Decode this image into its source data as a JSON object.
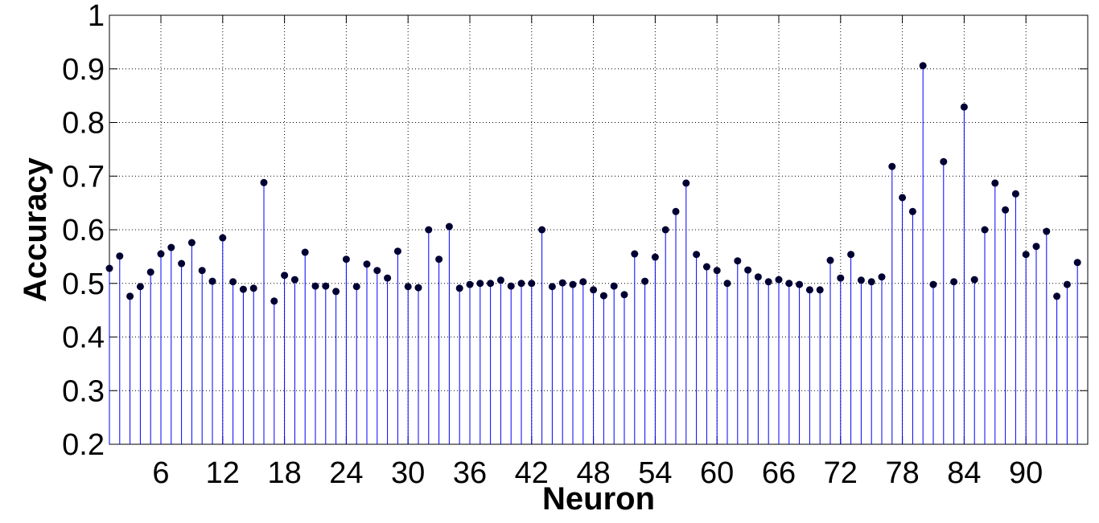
{
  "chart_data": {
    "type": "stem",
    "xlabel": "Neuron",
    "ylabel": "Accuracy",
    "x": [
      1,
      2,
      3,
      4,
      5,
      6,
      7,
      8,
      9,
      10,
      11,
      12,
      13,
      14,
      15,
      16,
      17,
      18,
      19,
      20,
      21,
      22,
      23,
      24,
      25,
      26,
      27,
      28,
      29,
      30,
      31,
      32,
      33,
      34,
      35,
      36,
      37,
      38,
      39,
      40,
      41,
      42,
      43,
      44,
      45,
      46,
      47,
      48,
      49,
      50,
      51,
      52,
      53,
      54,
      55,
      56,
      57,
      58,
      59,
      60,
      61,
      62,
      63,
      64,
      65,
      66,
      67,
      68,
      69,
      70,
      71,
      72,
      73,
      74,
      75,
      76,
      77,
      78,
      79,
      80,
      81,
      82,
      83,
      84,
      85,
      86,
      87,
      88,
      89,
      90,
      91,
      92,
      93,
      94,
      95
    ],
    "values": [
      0.528,
      0.551,
      0.476,
      0.494,
      0.521,
      0.555,
      0.567,
      0.537,
      0.576,
      0.524,
      0.504,
      0.585,
      0.503,
      0.489,
      0.491,
      0.688,
      0.467,
      0.515,
      0.507,
      0.558,
      0.495,
      0.495,
      0.485,
      0.545,
      0.494,
      0.536,
      0.524,
      0.51,
      0.56,
      0.494,
      0.492,
      0.6,
      0.545,
      0.606,
      0.491,
      0.498,
      0.5,
      0.5,
      0.506,
      0.495,
      0.5,
      0.5,
      0.6,
      0.494,
      0.501,
      0.498,
      0.503,
      0.488,
      0.477,
      0.495,
      0.479,
      0.555,
      0.504,
      0.549,
      0.6,
      0.634,
      0.687,
      0.554,
      0.531,
      0.524,
      0.5,
      0.542,
      0.525,
      0.512,
      0.503,
      0.507,
      0.5,
      0.498,
      0.488,
      0.488,
      0.543,
      0.51,
      0.554,
      0.506,
      0.503,
      0.512,
      0.718,
      0.66,
      0.634,
      0.906,
      0.498,
      0.727,
      0.503,
      0.829,
      0.507,
      0.6,
      0.687,
      0.637,
      0.667,
      0.554,
      0.569,
      0.597,
      0.476,
      0.498,
      0.539
    ],
    "color": "#0000ff",
    "marker_color": "#000033",
    "xlim": [
      1,
      96
    ],
    "xticks": [
      6,
      12,
      18,
      24,
      30,
      36,
      42,
      48,
      54,
      60,
      66,
      72,
      78,
      84,
      90
    ],
    "ylim": [
      0.2,
      1
    ],
    "yticks": [
      0.2,
      0.3,
      0.4,
      0.5,
      0.6,
      0.7,
      0.8,
      0.9,
      1
    ],
    "grid": true
  }
}
